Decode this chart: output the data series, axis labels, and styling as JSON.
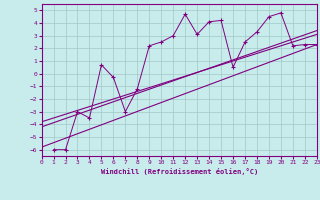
{
  "xlabel": "Windchill (Refroidissement éolien,°C)",
  "ylabel": "",
  "bg_color": "#c8ecec",
  "line_color": "#800080",
  "grid_color": "#a0c8c8",
  "xlim": [
    0,
    23
  ],
  "ylim": [
    -6.5,
    5.5
  ],
  "xticks": [
    0,
    1,
    2,
    3,
    4,
    5,
    6,
    7,
    8,
    9,
    10,
    11,
    12,
    13,
    14,
    15,
    16,
    17,
    18,
    19,
    20,
    21,
    22,
    23
  ],
  "yticks": [
    -6,
    -5,
    -4,
    -3,
    -2,
    -1,
    0,
    1,
    2,
    3,
    4,
    5
  ],
  "scatter_x": [
    1,
    2,
    3,
    4,
    5,
    6,
    7,
    8,
    9,
    10,
    11,
    12,
    13,
    14,
    15,
    16,
    17,
    18,
    19,
    20,
    21,
    22,
    23
  ],
  "scatter_y": [
    -6,
    -6,
    -3,
    -3.5,
    0.7,
    -0.3,
    -3,
    -1.2,
    2.2,
    2.5,
    3.0,
    4.7,
    3.1,
    4.1,
    4.2,
    0.5,
    2.5,
    3.3,
    4.5,
    4.8,
    2.2,
    2.3,
    2.3
  ],
  "reg_line1_x": [
    0,
    23
  ],
  "reg_line1_y": [
    -5.8,
    2.3
  ],
  "reg_line2_x": [
    0,
    23
  ],
  "reg_line2_y": [
    -4.2,
    3.4
  ],
  "reg_line3_x": [
    0,
    23
  ],
  "reg_line3_y": [
    -3.8,
    3.1
  ]
}
